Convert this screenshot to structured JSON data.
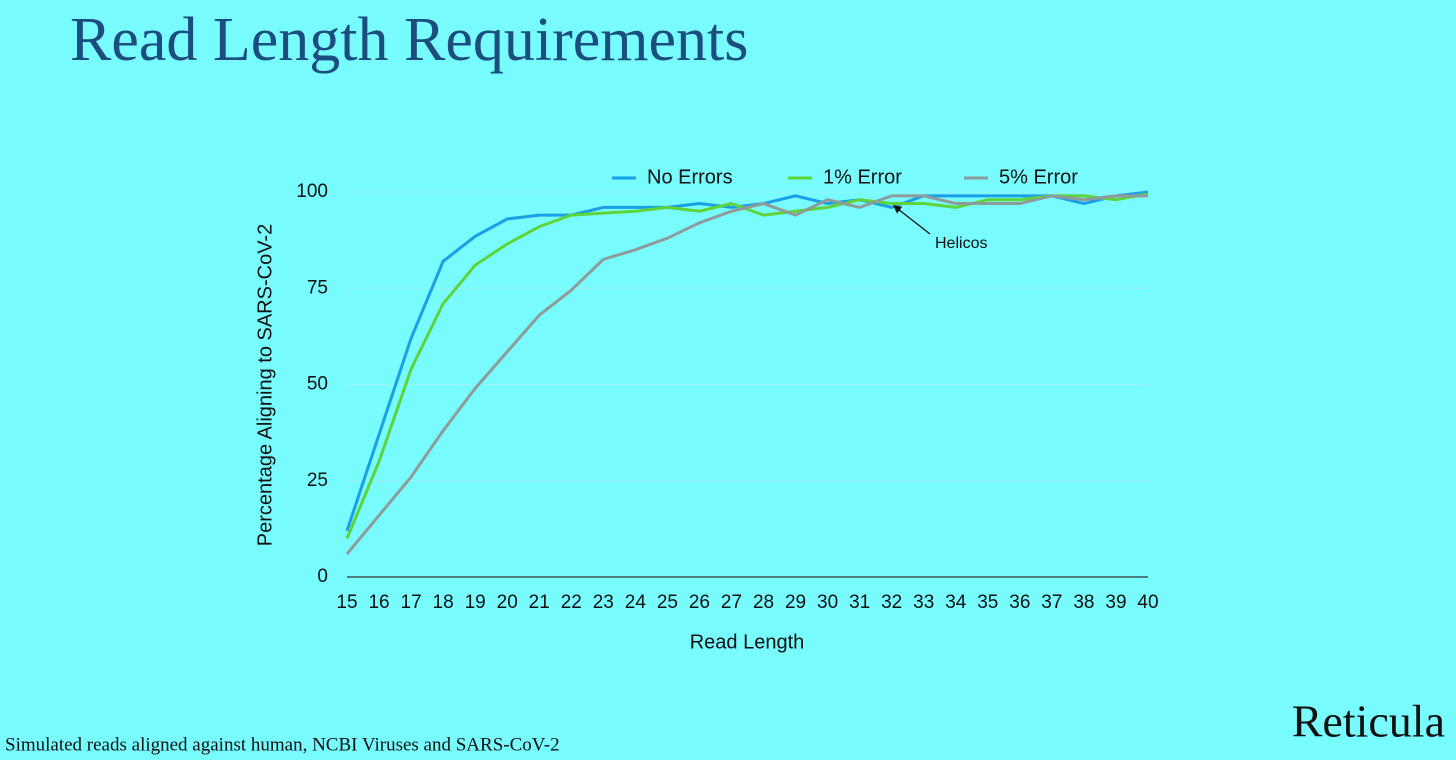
{
  "chart_data": {
    "type": "line",
    "title": "Read Length Requirements",
    "xlabel": "Read Length",
    "ylabel": "Percentage Aligning to SARS-CoV-2",
    "x": [
      15,
      16,
      17,
      18,
      19,
      20,
      21,
      22,
      23,
      24,
      25,
      26,
      27,
      28,
      29,
      30,
      31,
      32,
      33,
      34,
      35,
      36,
      37,
      38,
      39,
      40
    ],
    "xlim": [
      15,
      40
    ],
    "xticks": [
      15,
      16,
      17,
      18,
      19,
      20,
      21,
      22,
      23,
      24,
      25,
      26,
      27,
      28,
      29,
      30,
      31,
      32,
      33,
      34,
      35,
      36,
      37,
      38,
      39,
      40
    ],
    "ylim": [
      0,
      100
    ],
    "yticks": [
      0,
      25,
      50,
      75,
      100
    ],
    "grid": true,
    "legend": "top",
    "series": [
      {
        "name": "No Errors",
        "color": "#1a9fe6",
        "values": [
          12,
          37,
          62,
          82,
          88.5,
          93,
          94,
          94,
          96,
          96,
          96,
          97,
          96,
          97,
          99,
          97,
          98,
          96,
          99,
          99,
          99,
          99,
          99,
          97,
          99,
          100
        ]
      },
      {
        "name": "1% Error",
        "color": "#5ed43a",
        "values": [
          10,
          30,
          54,
          71,
          81,
          86.5,
          91,
          94,
          94.5,
          95,
          96,
          95,
          97,
          94,
          95,
          96,
          98,
          97,
          97,
          96,
          98,
          98,
          99,
          99,
          98,
          99.5
        ]
      },
      {
        "name": "5% Error",
        "color": "#8f9a9a",
        "values": [
          6,
          16,
          26,
          38,
          49,
          58.5,
          68,
          74.5,
          82.5,
          85,
          88,
          92,
          95,
          97,
          94,
          98,
          96,
          99,
          99,
          97,
          97,
          97,
          99,
          98,
          99,
          99
        ]
      }
    ],
    "annotation": {
      "text": "Helicos",
      "x": 32,
      "y": 97.5
    }
  },
  "footer": "Simulated reads aligned against human, NCBI Viruses and SARS-CoV-2",
  "brand": "Reticula"
}
